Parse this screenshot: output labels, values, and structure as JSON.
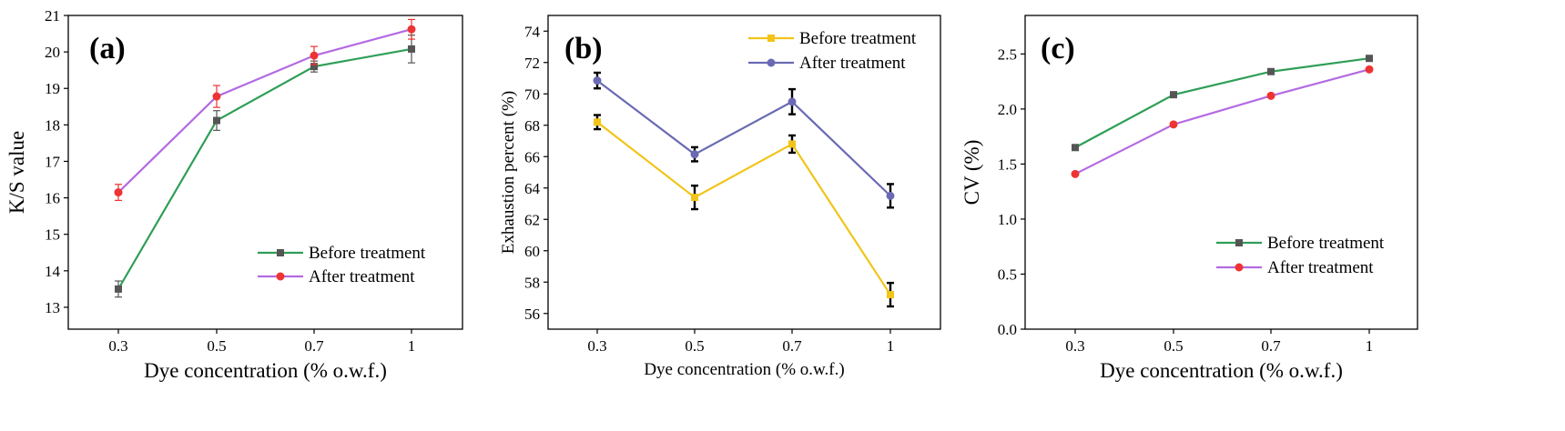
{
  "chart_data": [
    {
      "panel_label": "(a)",
      "type": "line",
      "categories": [
        "0.3",
        "0.5",
        "0.7",
        "1"
      ],
      "xlabel": "Dye concentration (% o.w.f.)",
      "ylabel": "K/S value",
      "ylim": [
        12.4,
        21
      ],
      "yticks": [
        13,
        14,
        15,
        16,
        17,
        18,
        19,
        20,
        21
      ],
      "legend_position": "bottom-right",
      "series": [
        {
          "name": "Before treatment",
          "color": "#2e9e57",
          "marker": "square",
          "marker_color": "#555555",
          "values": [
            13.5,
            18.12,
            19.6,
            20.08
          ],
          "errors": [
            0.22,
            0.27,
            0.15,
            0.38
          ]
        },
        {
          "name": "After treatment",
          "color": "#b36ae2",
          "marker": "circle",
          "marker_color": "#ee3333",
          "values": [
            16.15,
            18.78,
            19.9,
            20.62
          ],
          "errors": [
            0.22,
            0.3,
            0.25,
            0.27
          ]
        }
      ]
    },
    {
      "panel_label": "(b)",
      "type": "line",
      "categories": [
        "0.3",
        "0.5",
        "0.7",
        "1"
      ],
      "xlabel": "Dye concentration (% o.w.f.)",
      "ylabel": "Exhaustion percent (%)",
      "ylim": [
        55,
        75
      ],
      "yticks": [
        56,
        58,
        60,
        62,
        64,
        66,
        68,
        70,
        72,
        74
      ],
      "legend_position": "top-right",
      "series": [
        {
          "name": "Before treatment",
          "color": "#f2c418",
          "marker": "square",
          "marker_color": "#f2c418",
          "values": [
            68.2,
            63.4,
            66.8,
            57.2
          ],
          "errors": [
            0.45,
            0.75,
            0.55,
            0.75
          ]
        },
        {
          "name": "After treatment",
          "color": "#6a6ab4",
          "marker": "circle",
          "marker_color": "#6a6ab4",
          "values": [
            70.85,
            66.15,
            69.5,
            63.5
          ],
          "errors": [
            0.5,
            0.45,
            0.8,
            0.75
          ]
        }
      ]
    },
    {
      "panel_label": "(c)",
      "type": "line",
      "categories": [
        "0.3",
        "0.5",
        "0.7",
        "1"
      ],
      "xlabel": "Dye concentration (% o.w.f.)",
      "ylabel": "CV (%)",
      "ylim": [
        0,
        2.85
      ],
      "yticks": [
        0.0,
        0.5,
        1.0,
        1.5,
        2.0,
        2.5
      ],
      "ytick_labels": [
        "0.0",
        "0.5",
        "1.0",
        "1.5",
        "2.0",
        "2.5"
      ],
      "legend_position": "bottom-right",
      "series": [
        {
          "name": "Before treatment",
          "color": "#2e9e57",
          "marker": "square",
          "marker_color": "#555555",
          "values": [
            1.65,
            2.13,
            2.34,
            2.46
          ],
          "errors": []
        },
        {
          "name": "After treatment",
          "color": "#b36ae2",
          "marker": "circle",
          "marker_color": "#ee3333",
          "values": [
            1.41,
            1.86,
            2.12,
            2.36
          ],
          "errors": []
        }
      ]
    }
  ]
}
